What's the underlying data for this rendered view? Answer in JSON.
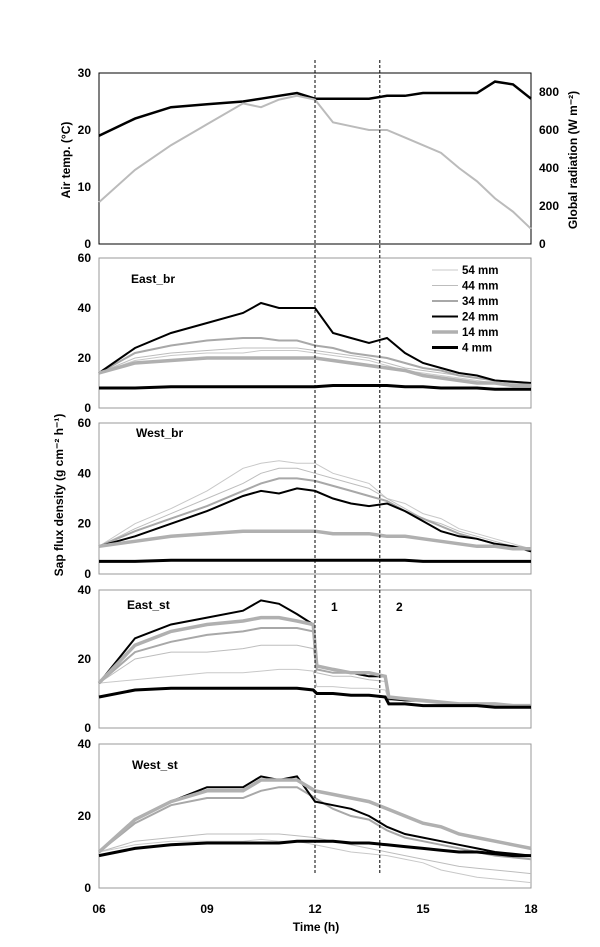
{
  "chart_data": [
    {
      "type": "line",
      "panel": "top",
      "ylabel_left": "Air temp. (°C)",
      "ylabel_right": "Global radiation (W m⁻²)",
      "ylim_left": [
        0,
        30
      ],
      "ylim_right": [
        0,
        900
      ],
      "yticks_left": [
        "0",
        "10",
        "20",
        "30"
      ],
      "yticks_right": [
        "0",
        "200",
        "400",
        "600",
        "800"
      ],
      "x": [
        6,
        7,
        8,
        9,
        10,
        10.5,
        11,
        11.5,
        12,
        12.5,
        13,
        13.5,
        14,
        14.5,
        15,
        15.5,
        16,
        16.5,
        17,
        17.5,
        18
      ],
      "series": [
        {
          "color": "#000000",
          "axis": "left",
          "values": [
            19,
            22,
            24,
            24.5,
            25,
            25.5,
            26,
            26.5,
            25.5,
            25.5,
            25.5,
            25.5,
            26,
            26,
            26.5,
            26.5,
            26.5,
            26.5,
            28.5,
            28,
            25.5
          ]
        },
        {
          "color": "#bbbbbb",
          "axis": "right",
          "values": [
            220,
            390,
            520,
            630,
            740,
            720,
            760,
            780,
            760,
            640,
            620,
            600,
            600,
            560,
            520,
            480,
            400,
            330,
            240,
            170,
            80
          ]
        }
      ]
    },
    {
      "type": "line",
      "panel": "East_br",
      "name": "East_br",
      "ylim": [
        0,
        60
      ],
      "yticks": [
        "0",
        "20",
        "40",
        "60"
      ],
      "x": [
        6,
        7,
        8,
        9,
        10,
        10.5,
        11,
        11.5,
        12,
        12.5,
        13,
        13.5,
        14,
        14.5,
        15,
        15.5,
        16,
        16.5,
        17,
        17.5,
        18
      ],
      "series": [
        {
          "name": "54 mm",
          "values": [
            14,
            19,
            21,
            22,
            22,
            23,
            23,
            23,
            22,
            21,
            20,
            19,
            17,
            15,
            14,
            13,
            12,
            11,
            10,
            9.5,
            9
          ]
        },
        {
          "name": "44 mm",
          "values": [
            14,
            20,
            22,
            23,
            24,
            24,
            24,
            24,
            23,
            22,
            21,
            20,
            18,
            16,
            15,
            14,
            13,
            12,
            11,
            10,
            9.5
          ]
        },
        {
          "name": "34 mm",
          "values": [
            14,
            22,
            25,
            27,
            28,
            28,
            27,
            27,
            25,
            24,
            22,
            21,
            20,
            18,
            16,
            15,
            13,
            12,
            11,
            10.5,
            10
          ]
        },
        {
          "name": "24 mm",
          "values": [
            14,
            24,
            30,
            34,
            38,
            42,
            40,
            40,
            40,
            30,
            28,
            26,
            28,
            22,
            18,
            16,
            14,
            13,
            11,
            10.5,
            10
          ]
        },
        {
          "name": "14 mm",
          "values": [
            14,
            18,
            19,
            20,
            20,
            20,
            20,
            20,
            20,
            19,
            18,
            17,
            16,
            15,
            13,
            12,
            11,
            10,
            10,
            9,
            9
          ]
        },
        {
          "name": "4 mm",
          "values": [
            8,
            8,
            8.5,
            8.5,
            8.5,
            8.5,
            8.5,
            8.5,
            8.5,
            9,
            9,
            9,
            9,
            8.5,
            8.5,
            8,
            8,
            8,
            7.5,
            7.5,
            7.5
          ]
        }
      ]
    },
    {
      "type": "line",
      "panel": "West_br",
      "name": "West_br",
      "ylim": [
        0,
        60
      ],
      "yticks": [
        "0",
        "20",
        "40",
        "60"
      ],
      "x": [
        6,
        7,
        8,
        9,
        10,
        10.5,
        11,
        11.5,
        12,
        12.5,
        13,
        13.5,
        14,
        14.5,
        15,
        15.5,
        16,
        16.5,
        17,
        17.5,
        18
      ],
      "series": [
        {
          "name": "54 mm",
          "values": [
            11,
            20,
            26,
            33,
            42,
            44,
            45,
            44,
            44,
            40,
            38,
            36,
            30,
            28,
            24,
            22,
            18,
            16,
            14,
            12,
            10
          ]
        },
        {
          "name": "44 mm",
          "values": [
            11,
            18,
            24,
            30,
            36,
            40,
            42,
            42,
            40,
            38,
            36,
            34,
            30,
            26,
            22,
            20,
            17,
            15,
            13,
            11,
            10
          ]
        },
        {
          "name": "34 mm",
          "values": [
            11,
            17,
            22,
            27,
            33,
            36,
            38,
            38,
            37,
            35,
            33,
            31,
            29,
            25,
            22,
            19,
            16,
            14,
            12,
            11,
            10
          ]
        },
        {
          "name": "24 mm",
          "values": [
            11,
            15,
            20,
            25,
            31,
            33,
            32,
            34,
            33,
            30,
            28,
            27,
            28,
            25,
            21,
            17,
            15,
            14,
            12,
            11,
            9
          ]
        },
        {
          "name": "14 mm",
          "values": [
            11,
            13,
            15,
            16,
            17,
            17,
            17,
            17,
            17,
            16,
            16,
            16,
            15,
            15,
            14,
            13,
            12,
            11,
            11,
            10,
            10
          ]
        },
        {
          "name": "4 mm",
          "values": [
            5,
            5,
            5.5,
            5.5,
            5.5,
            5.5,
            5.5,
            5.5,
            5.5,
            5.5,
            5.5,
            5.5,
            5.5,
            5.5,
            5,
            5,
            5,
            5,
            5,
            5,
            5
          ]
        }
      ]
    },
    {
      "type": "line",
      "panel": "East_st",
      "name": "East_st",
      "ylim": [
        0,
        40
      ],
      "yticks": [
        "0",
        "20",
        "40"
      ],
      "annotations": [
        "1",
        "2"
      ],
      "x": [
        6,
        7,
        8,
        9,
        10,
        10.5,
        11,
        11.5,
        11.95,
        12.05,
        12.5,
        13,
        13.5,
        13.95,
        14.05,
        14.5,
        15,
        15.5,
        16,
        16.5,
        17,
        17.5,
        18
      ],
      "series": [
        {
          "name": "54 mm",
          "values": [
            13,
            14,
            15,
            16,
            16,
            16.5,
            17,
            17,
            16.5,
            12,
            12,
            11.5,
            11.5,
            11,
            8,
            8,
            7.5,
            7,
            7,
            6.5,
            6.5,
            6,
            6
          ]
        },
        {
          "name": "44 mm",
          "values": [
            13,
            20,
            22,
            22,
            23,
            24,
            24,
            24,
            23,
            16,
            15,
            15,
            14,
            13.5,
            8,
            8,
            8,
            7.5,
            7,
            7,
            7,
            6.5,
            6.5
          ]
        },
        {
          "name": "34 mm",
          "values": [
            13,
            22,
            25,
            27,
            28,
            29,
            29,
            29,
            28,
            17,
            16,
            16,
            15,
            15,
            8.5,
            8,
            8,
            7.5,
            7,
            7,
            7,
            6.5,
            6.5
          ]
        },
        {
          "name": "24 mm",
          "values": [
            13,
            26,
            30,
            32,
            34,
            37,
            36,
            33,
            30,
            18,
            17,
            16,
            15,
            15,
            8.5,
            8,
            8,
            7.5,
            7,
            7,
            7,
            6.5,
            6.5
          ]
        },
        {
          "name": "14 mm",
          "values": [
            13,
            24,
            28,
            30,
            31,
            32,
            32,
            31,
            30,
            18,
            17,
            16,
            16,
            15,
            9,
            8.5,
            8,
            7.5,
            7,
            7,
            7,
            6.5,
            6.5
          ]
        },
        {
          "name": "4 mm",
          "values": [
            9,
            11,
            11.5,
            11.5,
            11.5,
            11.5,
            11.5,
            11.5,
            11,
            10,
            10,
            9.5,
            9.5,
            9,
            7,
            7,
            6.5,
            6.5,
            6.5,
            6.5,
            6,
            6,
            6
          ]
        }
      ]
    },
    {
      "type": "line",
      "panel": "West_st",
      "name": "West_st",
      "ylim": [
        0,
        40
      ],
      "yticks": [
        "0",
        "20",
        "40"
      ],
      "xlabel": "Time (h)",
      "xticks": [
        "06",
        "09",
        "12",
        "15",
        "18"
      ],
      "x": [
        6,
        7,
        8,
        9,
        10,
        10.5,
        11,
        11.5,
        12,
        12.5,
        13,
        13.5,
        14,
        14.5,
        15,
        15.5,
        16,
        16.5,
        17,
        17.5,
        18
      ],
      "series": [
        {
          "name": "54 mm",
          "values": [
            10,
            12,
            13,
            13,
            13,
            13.5,
            13,
            13,
            12,
            11,
            10,
            9.5,
            9,
            8,
            7,
            5,
            4,
            3,
            2.5,
            2,
            1.5
          ]
        },
        {
          "name": "44 mm",
          "values": [
            10,
            13,
            14,
            15,
            15,
            15,
            15,
            14.5,
            14,
            13,
            12,
            11,
            10,
            9,
            8,
            7,
            6,
            5.5,
            5,
            4.5,
            4
          ]
        },
        {
          "name": "34 mm",
          "values": [
            10,
            18,
            23,
            25,
            25,
            27,
            28,
            28,
            25,
            22,
            20,
            19,
            16,
            14,
            13,
            12,
            11,
            10,
            9,
            8.5,
            8
          ]
        },
        {
          "name": "24 mm",
          "values": [
            10,
            19,
            24,
            28,
            28,
            31,
            30,
            31,
            24,
            23,
            22,
            20,
            17,
            15,
            14,
            13,
            12,
            11,
            10,
            9.5,
            9
          ]
        },
        {
          "name": "14 mm",
          "values": [
            10,
            19,
            24,
            27,
            27,
            30,
            30,
            30,
            27,
            26,
            25,
            24,
            22,
            20,
            18,
            17,
            15,
            14,
            13,
            12,
            11
          ]
        },
        {
          "name": "4 mm",
          "values": [
            9,
            11,
            12,
            12.5,
            12.5,
            12.5,
            12.5,
            13,
            13,
            13,
            12.5,
            12.5,
            12,
            11.5,
            11,
            10.5,
            10,
            10,
            9.5,
            9,
            9
          ]
        }
      ]
    }
  ],
  "shared_ylabel": "Sap flux density (g cm⁻² h⁻¹)",
  "colors": {
    "54 mm": "#c8c8c8",
    "44 mm": "#bdbdbd",
    "34 mm": "#a8a8a8",
    "24 mm": "#000000",
    "14 mm": "#b0b0b0",
    "4 mm": "#000000"
  },
  "dashed_lines_x": [
    12,
    13.8
  ]
}
